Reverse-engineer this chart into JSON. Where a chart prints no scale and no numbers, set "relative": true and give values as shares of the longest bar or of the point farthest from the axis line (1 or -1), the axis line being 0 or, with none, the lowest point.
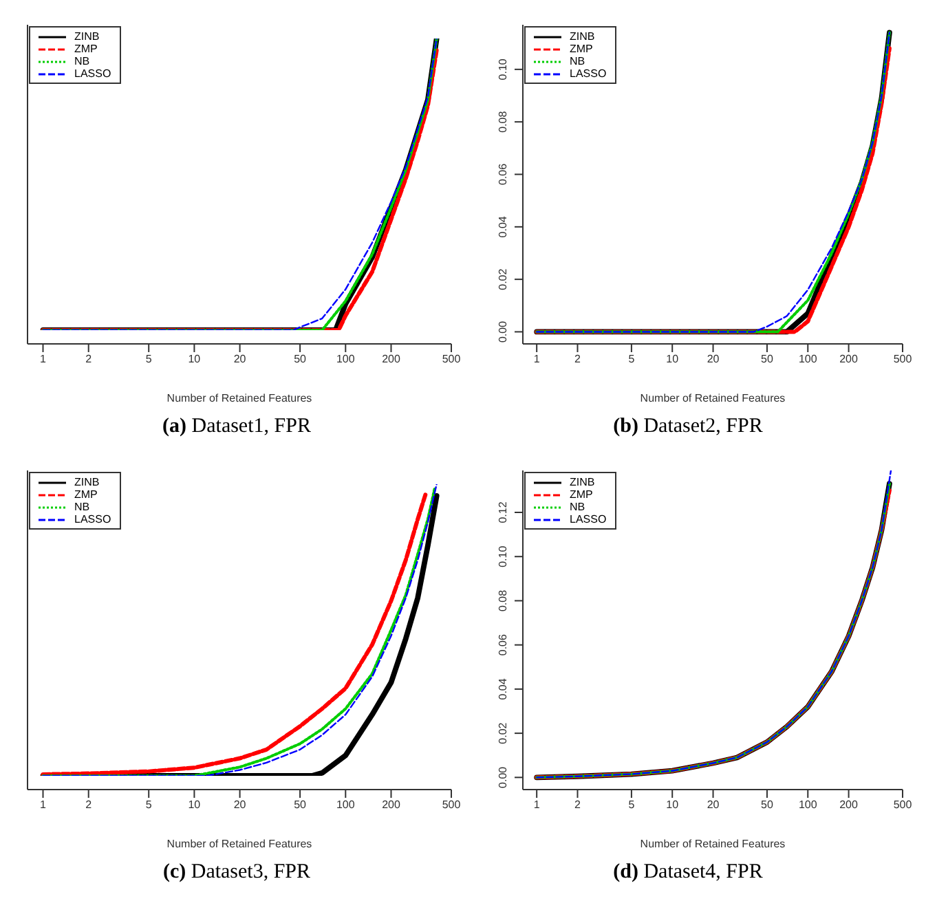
{
  "chart_data": [
    {
      "type": "line",
      "title": "(a) Dataset1, FPR",
      "xlabel": "Number of Retained Features",
      "relative": true,
      "tick_labels": "x",
      "log": "x",
      "legend": "top left",
      "xlim": [
        0.79,
        500
      ],
      "xticks": [
        1,
        2,
        5,
        10,
        20,
        50,
        100,
        200,
        500
      ],
      "series": [
        {
          "name": "ZINB",
          "color": "#000000",
          "line_style": "solid",
          "x": [
            1,
            86,
            100,
            150,
            200,
            250,
            300,
            350,
            400
          ],
          "values": [
            0,
            0,
            0.09,
            0.25,
            0.42,
            0.55,
            0.68,
            0.79,
            1
          ]
        },
        {
          "name": "ZMP",
          "color": "#ff0000",
          "line_style": "dashed",
          "x": [
            1,
            90,
            100,
            150,
            200,
            250,
            300,
            350,
            400
          ],
          "values": [
            0,
            0,
            0.05,
            0.2,
            0.38,
            0.52,
            0.65,
            0.77,
            0.96
          ]
        },
        {
          "name": "NB",
          "color": "#00cd00",
          "line_style": "dotted",
          "x": [
            1,
            70,
            100,
            150,
            200,
            250,
            300,
            350,
            400
          ],
          "values": [
            0,
            0,
            0.1,
            0.26,
            0.42,
            0.55,
            0.68,
            0.79,
            1
          ]
        },
        {
          "name": "LASSO",
          "color": "#0000ff",
          "line_style": "dashed",
          "x": [
            1,
            45,
            50,
            70,
            100,
            150,
            200,
            250,
            300,
            350,
            400
          ],
          "values": [
            0,
            0,
            0.01,
            0.04,
            0.14,
            0.3,
            0.44,
            0.56,
            0.69,
            0.8,
            1
          ]
        }
      ]
    },
    {
      "type": "line",
      "title": "(b) Dataset2, FPR",
      "xlabel": "Number of Retained Features",
      "log": "x",
      "legend": "top left",
      "xlim": [
        0.79,
        500
      ],
      "xticks": [
        1,
        2,
        5,
        10,
        20,
        50,
        100,
        200,
        500
      ],
      "ylim": [
        -0.0046,
        0.117
      ],
      "yticks": [
        {
          "value": 0,
          "label": "0.00"
        },
        {
          "value": 0.02,
          "label": "0.02"
        },
        {
          "value": 0.04,
          "label": "0.04"
        },
        {
          "value": 0.06,
          "label": "0.06"
        },
        {
          "value": 0.08,
          "label": "0.08"
        },
        {
          "value": 0.1,
          "label": "0.10"
        }
      ],
      "series": [
        {
          "name": "ZINB",
          "color": "#000000",
          "line_style": "solid",
          "x": [
            1,
            70,
            100,
            150,
            200,
            250,
            300,
            350,
            400
          ],
          "values": [
            0,
            0,
            0.007,
            0.029,
            0.044,
            0.057,
            0.071,
            0.089,
            0.114
          ]
        },
        {
          "name": "ZMP",
          "color": "#ff0000",
          "line_style": "dashed",
          "x": [
            1,
            80,
            100,
            150,
            200,
            250,
            300,
            350,
            400
          ],
          "values": [
            0,
            0,
            0.004,
            0.025,
            0.04,
            0.054,
            0.068,
            0.087,
            0.108
          ]
        },
        {
          "name": "NB",
          "color": "#00cd00",
          "line_style": "dotted",
          "x": [
            1,
            60,
            100,
            150,
            200,
            250,
            300,
            350,
            400
          ],
          "values": [
            0,
            0,
            0.012,
            0.03,
            0.045,
            0.058,
            0.072,
            0.09,
            0.114
          ]
        },
        {
          "name": "LASSO",
          "color": "#0000ff",
          "line_style": "dashed",
          "x": [
            1,
            40,
            50,
            70,
            100,
            150,
            200,
            250,
            300,
            350,
            400
          ],
          "values": [
            0,
            0,
            0.002,
            0.006,
            0.016,
            0.032,
            0.046,
            0.058,
            0.072,
            0.09,
            0.114
          ]
        }
      ]
    },
    {
      "type": "line",
      "title": "(c) Dataset3, FPR",
      "xlabel": "Number of Retained Features",
      "relative": true,
      "tick_labels": "x",
      "log": "x",
      "legend": "top left",
      "xlim": [
        0.79,
        500
      ],
      "xticks": [
        1,
        2,
        5,
        10,
        20,
        50,
        100,
        200,
        500
      ],
      "series": [
        {
          "name": "ZINB",
          "color": "#000000",
          "line_style": "solid",
          "x": [
            1,
            60,
            70,
            100,
            150,
            200,
            250,
            300,
            350,
            400
          ],
          "values": [
            0,
            0,
            0.01,
            0.07,
            0.21,
            0.32,
            0.47,
            0.61,
            0.79,
            0.96
          ]
        },
        {
          "name": "ZMP",
          "color": "#ff0000",
          "line_style": "dashed",
          "x": [
            1,
            2,
            5,
            10,
            20,
            30,
            50,
            70,
            100,
            150,
            200,
            250,
            300,
            340
          ],
          "values": [
            0.005,
            0.008,
            0.015,
            0.028,
            0.06,
            0.09,
            0.17,
            0.23,
            0.3,
            0.45,
            0.6,
            0.74,
            0.88,
            0.97
          ]
        },
        {
          "name": "NB",
          "color": "#00cd00",
          "line_style": "dotted",
          "x": [
            1,
            10,
            20,
            30,
            50,
            70,
            100,
            150,
            200,
            250,
            300,
            350,
            390
          ],
          "values": [
            0,
            0,
            0.03,
            0.06,
            0.11,
            0.16,
            0.23,
            0.35,
            0.5,
            0.62,
            0.76,
            0.88,
            0.99
          ]
        },
        {
          "name": "LASSO",
          "color": "#0000ff",
          "line_style": "dashed",
          "x": [
            1,
            12,
            20,
            30,
            50,
            70,
            100,
            150,
            200,
            250,
            300,
            350,
            400
          ],
          "values": [
            0,
            0,
            0.02,
            0.045,
            0.09,
            0.14,
            0.21,
            0.34,
            0.48,
            0.61,
            0.74,
            0.87,
            1
          ]
        }
      ]
    },
    {
      "type": "line",
      "title": "(d) Dataset4, FPR",
      "xlabel": "Number of Retained Features",
      "log": "x",
      "legend": "top left",
      "xlim": [
        0.79,
        500
      ],
      "xticks": [
        1,
        2,
        5,
        10,
        20,
        50,
        100,
        200,
        500
      ],
      "ylim": [
        -0.0055,
        0.139
      ],
      "yticks": [
        {
          "value": 0,
          "label": "0.00"
        },
        {
          "value": 0.02,
          "label": "0.02"
        },
        {
          "value": 0.04,
          "label": "0.04"
        },
        {
          "value": 0.06,
          "label": "0.06"
        },
        {
          "value": 0.08,
          "label": "0.08"
        },
        {
          "value": 0.1,
          "label": "0.10"
        },
        {
          "value": 0.12,
          "label": "0.12"
        }
      ],
      "series": [
        {
          "name": "ZINB",
          "color": "#000000",
          "line_style": "solid",
          "x": [
            1,
            2,
            5,
            10,
            20,
            30,
            50,
            70,
            100,
            150,
            200,
            250,
            300,
            350,
            400
          ],
          "values": [
            0,
            0.0005,
            0.0015,
            0.003,
            0.0065,
            0.009,
            0.016,
            0.023,
            0.032,
            0.048,
            0.064,
            0.08,
            0.095,
            0.112,
            0.133
          ]
        },
        {
          "name": "ZMP",
          "color": "#ff0000",
          "line_style": "dashed",
          "x": [
            1,
            2,
            5,
            10,
            20,
            30,
            50,
            70,
            100,
            150,
            200,
            250,
            300,
            350,
            400
          ],
          "values": [
            0,
            0.0005,
            0.0015,
            0.003,
            0.0065,
            0.009,
            0.016,
            0.023,
            0.032,
            0.048,
            0.064,
            0.08,
            0.095,
            0.112,
            0.13
          ]
        },
        {
          "name": "NB",
          "color": "#00cd00",
          "line_style": "dotted",
          "x": [
            1,
            2,
            5,
            10,
            20,
            30,
            50,
            70,
            100,
            150,
            200,
            250,
            300,
            350,
            400
          ],
          "values": [
            0,
            0.0005,
            0.0015,
            0.003,
            0.0065,
            0.009,
            0.016,
            0.023,
            0.032,
            0.048,
            0.064,
            0.08,
            0.095,
            0.112,
            0.133
          ]
        },
        {
          "name": "LASSO",
          "color": "#0000ff",
          "line_style": "dashed",
          "x": [
            1,
            2,
            5,
            10,
            20,
            30,
            50,
            70,
            100,
            150,
            200,
            250,
            300,
            350,
            410
          ],
          "values": [
            0,
            0.0005,
            0.0015,
            0.003,
            0.0065,
            0.009,
            0.016,
            0.023,
            0.032,
            0.048,
            0.064,
            0.08,
            0.095,
            0.112,
            0.139
          ]
        }
      ]
    }
  ]
}
